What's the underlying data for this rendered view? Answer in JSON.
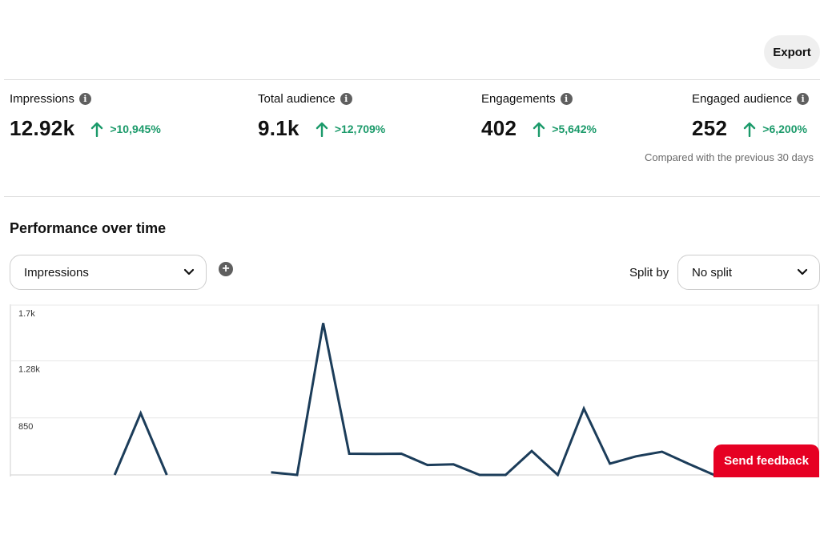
{
  "header": {
    "export_label": "Export"
  },
  "metrics": [
    {
      "label": "Impressions",
      "value": "12.92k",
      "change": ">10,945%"
    },
    {
      "label": "Total audience",
      "value": "9.1k",
      "change": ">12,709%"
    },
    {
      "label": "Engagements",
      "value": "402",
      "change": ">5,642%"
    },
    {
      "label": "Engaged audience",
      "value": "252",
      "change": ">6,200%"
    }
  ],
  "comparison_note": "Compared with the previous 30 days",
  "performance": {
    "title": "Performance over time",
    "metric_select": "Impressions",
    "split_label": "Split by",
    "split_select": "No split"
  },
  "feedback_label": "Send feedback",
  "colors": {
    "accent_green": "#1b9a6a",
    "line": "#1c3d5a",
    "feedback_red": "#e60023"
  },
  "chart_data": {
    "type": "line",
    "ylim": [
      420,
      1700
    ],
    "y_ticks": [
      "1.7k",
      "1.28k",
      "850"
    ],
    "y_tick_values": [
      1700,
      1280,
      850
    ],
    "series": [
      {
        "values": [
          null,
          null,
          null,
          null,
          420,
          885,
          420,
          null,
          null,
          null,
          440,
          420,
          1565,
          580,
          578,
          580,
          495,
          500,
          420,
          420,
          600,
          420,
          920,
          505,
          560,
          595,
          505,
          420,
          null,
          null,
          null,
          null
        ]
      }
    ]
  }
}
